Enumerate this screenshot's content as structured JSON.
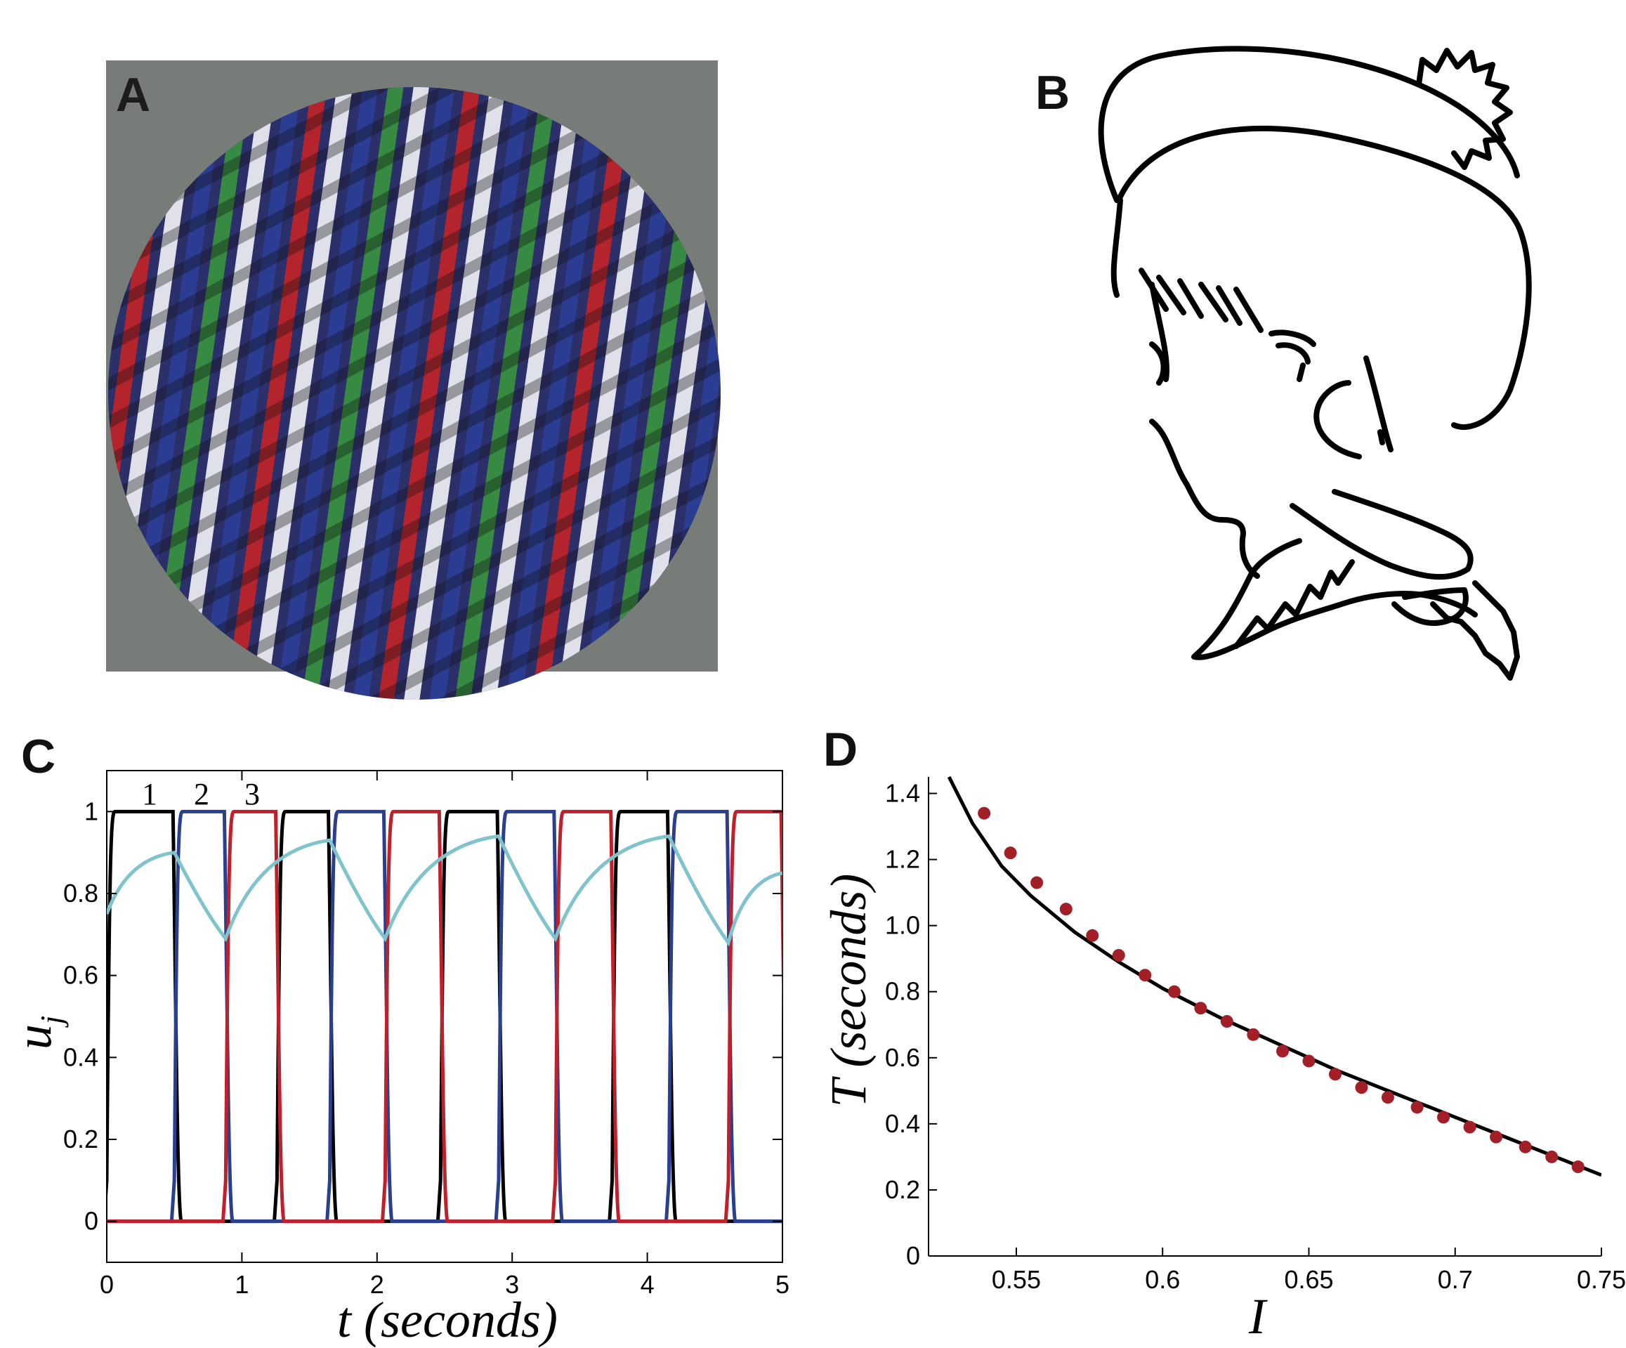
{
  "panels": {
    "A": {
      "letter": "A"
    },
    "B": {
      "letter": "B"
    },
    "C": {
      "letter": "C"
    },
    "D": {
      "letter": "D"
    }
  },
  "colors": {
    "black": "#000000",
    "blue": "#2a3f8f",
    "red": "#c0202a",
    "cyan": "#7fc3cc",
    "dots": "#a31f28",
    "plaid_bg": "#787c78"
  },
  "chart_data": [
    {
      "panel": "C",
      "type": "line",
      "xlabel_var": "t",
      "xlabel_unit": "(seconds)",
      "ylabel_var": "u",
      "ylabel_sub": "j",
      "xlim": [
        0,
        5
      ],
      "ylim": [
        -0.1,
        1.1
      ],
      "xticks": [
        0,
        1,
        2,
        3,
        4,
        5
      ],
      "yticks": [
        0,
        0.2,
        0.4,
        0.6,
        0.8,
        1
      ],
      "trace_labels": [
        "1",
        "2",
        "3"
      ],
      "dominance_cycle": [
        "black",
        "blue",
        "red"
      ],
      "switch_times": [
        0.0,
        0.5,
        0.88,
        1.26,
        1.65,
        2.06,
        2.47,
        2.9,
        3.32,
        3.74,
        4.16,
        4.6,
        5.0
      ],
      "adaptation_series": {
        "name": "",
        "x": [
          0,
          0.5,
          0.88,
          1.65,
          2.06,
          2.9,
          3.32,
          4.16,
          4.6,
          5.0
        ],
        "y": [
          0.75,
          0.9,
          0.69,
          0.93,
          0.69,
          0.94,
          0.69,
          0.94,
          0.68,
          0.85
        ]
      }
    },
    {
      "panel": "D",
      "type": "scatter",
      "xlabel": "I",
      "ylabel": "T (seconds)",
      "xlim": [
        0.52,
        0.75
      ],
      "ylim": [
        0,
        1.45
      ],
      "xticks": [
        "0.55",
        "0.6",
        "0.65",
        "0.7",
        "0.75"
      ],
      "yticks": [
        "0",
        "0.2",
        "0.4",
        "0.6",
        "0.8",
        "1.0",
        "1.2",
        "1.4"
      ],
      "series": [
        {
          "name": "",
          "kind": "points",
          "x": [
            0.539,
            0.548,
            0.557,
            0.567,
            0.576,
            0.585,
            0.594,
            0.604,
            0.613,
            0.622,
            0.631,
            0.641,
            0.65,
            0.659,
            0.668,
            0.677,
            0.687,
            0.696,
            0.705,
            0.714,
            0.724,
            0.733,
            0.742
          ],
          "y": [
            1.34,
            1.22,
            1.13,
            1.05,
            0.97,
            0.91,
            0.85,
            0.8,
            0.75,
            0.71,
            0.67,
            0.62,
            0.59,
            0.55,
            0.51,
            0.48,
            0.45,
            0.42,
            0.39,
            0.36,
            0.33,
            0.3,
            0.27
          ]
        },
        {
          "name": "",
          "kind": "curve",
          "x": [
            0.527,
            0.535,
            0.545,
            0.555,
            0.57,
            0.585,
            0.6,
            0.62,
            0.64,
            0.66,
            0.68,
            0.7,
            0.72,
            0.74,
            0.75
          ],
          "y": [
            1.45,
            1.31,
            1.18,
            1.09,
            0.98,
            0.89,
            0.81,
            0.72,
            0.64,
            0.56,
            0.49,
            0.42,
            0.35,
            0.28,
            0.245
          ]
        }
      ]
    }
  ]
}
